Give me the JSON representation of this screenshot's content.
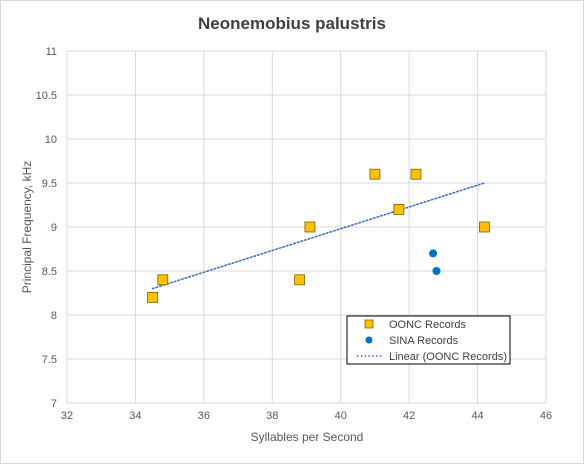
{
  "chart_data": {
    "type": "scatter",
    "title": "Neonemobius palustris",
    "xlabel": "Syllables per Second",
    "ylabel": "Principal Frequency, kHz",
    "xlim": [
      32,
      46
    ],
    "ylim": [
      7,
      11
    ],
    "x_ticks": [
      "32",
      "34",
      "36",
      "38",
      "40",
      "42",
      "44",
      "46"
    ],
    "y_ticks": [
      "7",
      "7.5",
      "8",
      "8.5",
      "9",
      "9.5",
      "10",
      "10.5",
      "11"
    ],
    "grid": true,
    "legend_position": "bottom-right",
    "series": [
      {
        "name": "OONC Records",
        "marker": "square",
        "color": "#FFC000",
        "edge_color": "#7F6000",
        "points": [
          {
            "x": 34.5,
            "y": 8.2
          },
          {
            "x": 34.8,
            "y": 8.4
          },
          {
            "x": 38.8,
            "y": 8.4
          },
          {
            "x": 39.1,
            "y": 9.0
          },
          {
            "x": 41.0,
            "y": 9.6
          },
          {
            "x": 41.7,
            "y": 9.2
          },
          {
            "x": 42.2,
            "y": 9.6
          },
          {
            "x": 44.2,
            "y": 9.0
          }
        ]
      },
      {
        "name": "SINA Records",
        "marker": "circle",
        "color": "#0070C0",
        "points": [
          {
            "x": 42.7,
            "y": 8.7
          },
          {
            "x": 42.8,
            "y": 8.5
          }
        ]
      }
    ],
    "trendline": {
      "name": "Linear (OONC Records)",
      "type": "linear",
      "style": "dotted",
      "color": "#4472C4",
      "from": {
        "x": 34.5,
        "y": 8.3
      },
      "to": {
        "x": 44.2,
        "y": 9.5
      }
    }
  }
}
